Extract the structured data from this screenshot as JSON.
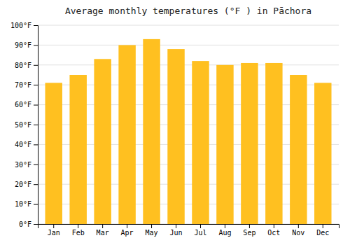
{
  "chart_data": {
    "type": "bar",
    "title": "Average monthly temperatures (°F ) in Pāchora",
    "categories": [
      "Jan",
      "Feb",
      "Mar",
      "Apr",
      "May",
      "Jun",
      "Jul",
      "Aug",
      "Sep",
      "Oct",
      "Nov",
      "Dec"
    ],
    "values": [
      71,
      75,
      83,
      90,
      93,
      88,
      82,
      80,
      81,
      81,
      75,
      71
    ],
    "color": "#FFC020",
    "ylim": [
      0,
      100
    ],
    "yticks": [
      {
        "value": 0,
        "label": "0°F"
      },
      {
        "value": 10,
        "label": "10°F"
      },
      {
        "value": 20,
        "label": "20°F"
      },
      {
        "value": 30,
        "label": "30°F"
      },
      {
        "value": 40,
        "label": "40°F"
      },
      {
        "value": 50,
        "label": "50°F"
      },
      {
        "value": 60,
        "label": "60°F"
      },
      {
        "value": 70,
        "label": "70°F"
      },
      {
        "value": 80,
        "label": "80°F"
      },
      {
        "value": 90,
        "label": "90°F"
      },
      {
        "value": 100,
        "label": "100°F"
      }
    ],
    "grid": true
  }
}
